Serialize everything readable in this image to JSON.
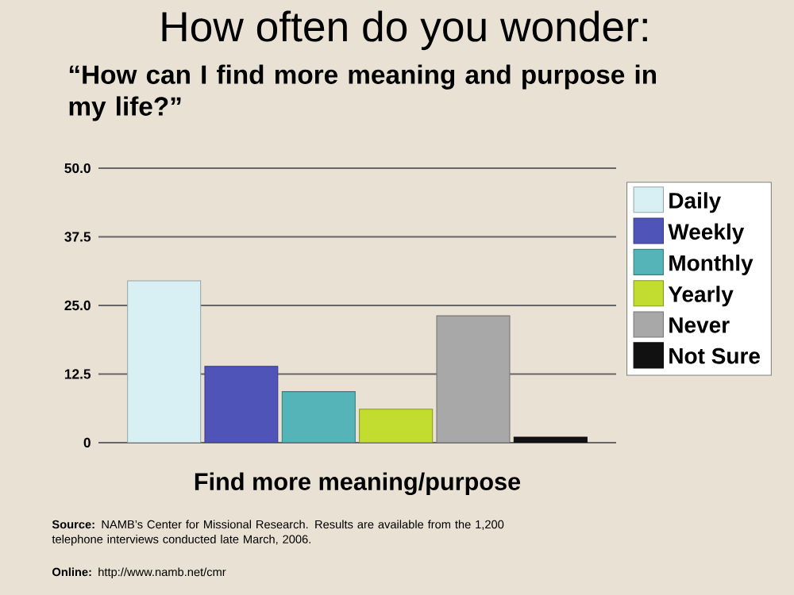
{
  "chart_data": {
    "type": "bar",
    "title": "How often do you wonder:",
    "subtitle": "“How can I find more meaning and purpose in my life?”",
    "categories": [
      "Find more meaning/purpose"
    ],
    "series": [
      {
        "name": "Daily",
        "color": "#d8f0f4",
        "values": [
          29.5
        ]
      },
      {
        "name": "Weekly",
        "color": "#4f55b8",
        "values": [
          13.9
        ]
      },
      {
        "name": "Monthly",
        "color": "#55b4b8",
        "values": [
          9.3
        ]
      },
      {
        "name": "Yearly",
        "color": "#c2dc30",
        "values": [
          6.1
        ]
      },
      {
        "name": "Never",
        "color": "#a8a8a8",
        "values": [
          23.1
        ]
      },
      {
        "name": "Not Sure",
        "color": "#111111",
        "values": [
          1
        ]
      }
    ],
    "ylim": [
      0,
      50
    ],
    "yticks": [
      0,
      {
        "value": 12.5,
        "label": "12.5"
      },
      {
        "value": 25,
        "label": "25.0"
      },
      {
        "value": 37.5,
        "label": "37.5"
      },
      {
        "value": 50,
        "label": "50.0"
      }
    ],
    "grid": "y",
    "legend": "top right",
    "annotations": [
      "**Source:** NAMB’s Center for Missional Research. Results are available from the 1,200 telephone interviews conducted late March, 2006.",
      "**Online:** http://www.namb.net/cmr"
    ]
  }
}
